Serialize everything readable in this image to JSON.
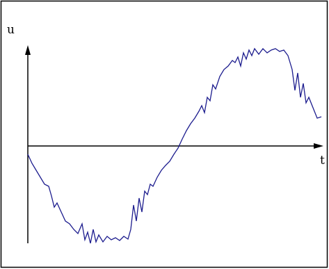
{
  "chart_data": {
    "type": "line",
    "xlabel": "t",
    "ylabel": "u",
    "color": "#1c1c8e",
    "xlim": [
      0,
      425
    ],
    "ylim": [
      -140,
      145
    ],
    "x": [
      0,
      6,
      12,
      18,
      24,
      30,
      34,
      38,
      42,
      48,
      54,
      60,
      66,
      72,
      78,
      82,
      86,
      90,
      94,
      98,
      102,
      108,
      114,
      120,
      126,
      132,
      138,
      144,
      148,
      152,
      156,
      160,
      164,
      168,
      172,
      176,
      180,
      186,
      192,
      198,
      204,
      210,
      216,
      222,
      228,
      234,
      240,
      246,
      250,
      254,
      258,
      262,
      266,
      270,
      276,
      282,
      288,
      294,
      298,
      302,
      306,
      310,
      314,
      318,
      322,
      326,
      332,
      338,
      344,
      350,
      356,
      362,
      368,
      374,
      380,
      384,
      388,
      392,
      396,
      400,
      404,
      410,
      416,
      422
    ],
    "values": [
      -12,
      -25,
      -35,
      -45,
      -55,
      -58,
      -72,
      -88,
      -82,
      -95,
      -108,
      -112,
      -120,
      -126,
      -112,
      -135,
      -124,
      -140,
      -120,
      -138,
      -128,
      -138,
      -130,
      -135,
      -132,
      -136,
      -130,
      -134,
      -120,
      -85,
      -108,
      -75,
      -95,
      -65,
      -70,
      -55,
      -58,
      -45,
      -35,
      -28,
      -22,
      -12,
      -3,
      10,
      22,
      32,
      40,
      50,
      58,
      48,
      70,
      65,
      88,
      82,
      100,
      110,
      115,
      123,
      120,
      128,
      115,
      134,
      125,
      138,
      130,
      140,
      132,
      140,
      134,
      138,
      140,
      136,
      138,
      130,
      110,
      80,
      105,
      70,
      90,
      62,
      70,
      55,
      40,
      42
    ]
  }
}
